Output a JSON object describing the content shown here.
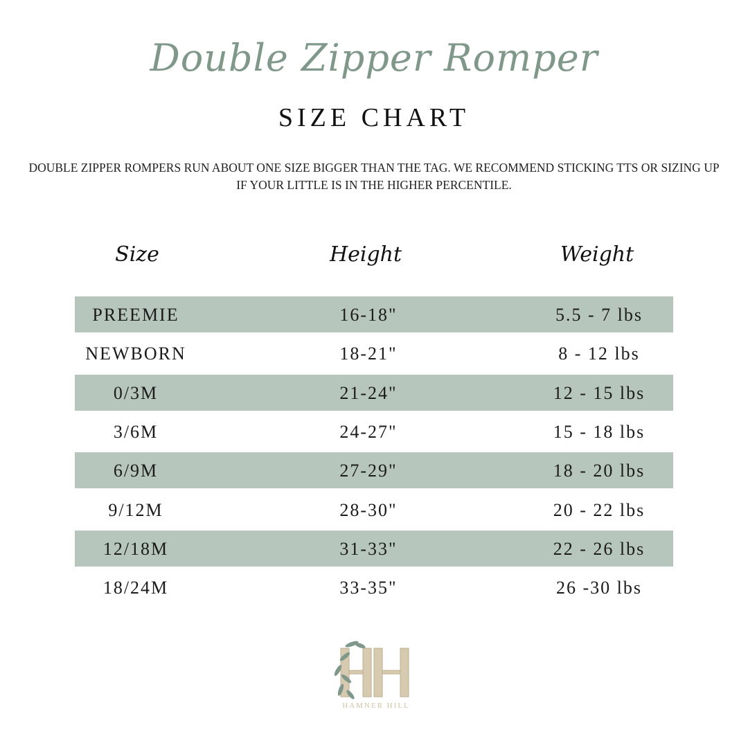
{
  "title": "Double Zipper Romper",
  "subtitle": "SIZE CHART",
  "note": "DOUBLE ZIPPER ROMPERS RUN ABOUT ONE SIZE BIGGER THAN THE TAG. WE RECOMMEND STICKING TTS OR SIZING UP IF YOUR LITTLE IS IN THE HIGHER PERCENTILE.",
  "columns": [
    "Size",
    "Height",
    "Weight"
  ],
  "rows": [
    [
      "PREEMIE",
      "16-18\"",
      "5.5 - 7 lbs"
    ],
    [
      "NEWBORN",
      "18-21\"",
      "8 - 12 lbs"
    ],
    [
      "0/3M",
      "21-24\"",
      "12 - 15 lbs"
    ],
    [
      "3/6M",
      "24-27\"",
      "15 - 18 lbs"
    ],
    [
      "6/9M",
      "27-29\"",
      "18 - 20 lbs"
    ],
    [
      "9/12M",
      "28-30\"",
      "20 - 22 lbs"
    ],
    [
      "12/18M",
      "31-33\"",
      "22 - 26 lbs"
    ],
    [
      "18/24M",
      "33-35\"",
      "26 -30 lbs"
    ]
  ],
  "logo": {
    "monogram": "HH",
    "text": "HAMNER HILL"
  },
  "colors": {
    "stripe": "#b7c6bc",
    "title": "#7f988a",
    "logo": "#cfc2a6"
  }
}
